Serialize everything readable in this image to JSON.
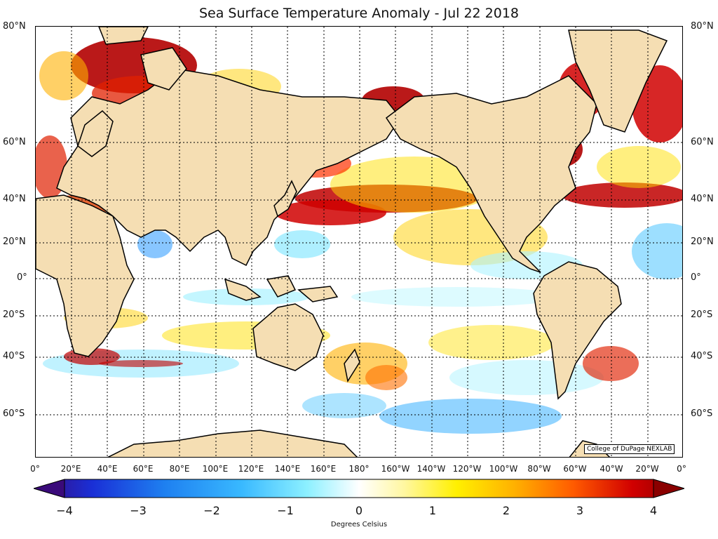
{
  "title": "Sea Surface Temperature Anomaly - Jul 22 2018",
  "credit": "College of DuPage NEXLAB",
  "map": {
    "projection": "cylindrical, centered near 180°",
    "lon_range": [
      0,
      360
    ],
    "lat_range": [
      -75,
      80
    ],
    "land_color": "#f5deb3",
    "grid": "dotted black",
    "lat_labels": [
      "80°N",
      "60°N",
      "40°N",
      "20°N",
      "0°",
      "20°S",
      "40°S",
      "60°S"
    ],
    "lon_labels": [
      "0°",
      "20°E",
      "40°E",
      "60°E",
      "80°E",
      "100°E",
      "120°E",
      "140°E",
      "160°E",
      "180°",
      "160°W",
      "140°W",
      "120°W",
      "100°W",
      "80°W",
      "60°W",
      "40°W",
      "20°W",
      "0°"
    ]
  },
  "colorbar": {
    "label": "Degrees Celsius",
    "min": -4,
    "max": 4,
    "ticks": [
      "−4",
      "−3",
      "−2",
      "−1",
      "0",
      "1",
      "2",
      "3",
      "4"
    ],
    "colors": [
      "#3a0a7a",
      "#1a2fd6",
      "#1e7ff0",
      "#39b9ff",
      "#8cf0ff",
      "#ffffff",
      "#fff7a0",
      "#fff000",
      "#ffb000",
      "#ff5a00",
      "#d10000",
      "#8a0000"
    ]
  }
}
